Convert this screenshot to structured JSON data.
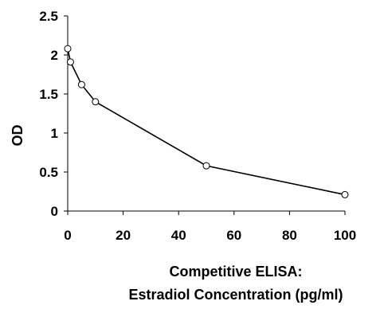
{
  "chart_data": {
    "type": "line",
    "title": "",
    "xlabel_lines": [
      "Competitive ELISA:",
      "Estradiol Concentration (pg/ml)"
    ],
    "ylabel": "OD",
    "xlim": [
      0,
      100
    ],
    "ylim": [
      0,
      2.5
    ],
    "x_ticks": [
      "0",
      "20",
      "40",
      "60",
      "80",
      "100"
    ],
    "y_ticks": [
      "0",
      "0.5",
      "1",
      "1.5",
      "2",
      "2.5"
    ],
    "grid": false,
    "legend": "none",
    "series": [
      {
        "x": [
          0,
          1,
          5,
          10,
          50,
          100
        ],
        "y": [
          2.08,
          1.91,
          1.62,
          1.4,
          0.58,
          0.21
        ]
      }
    ],
    "colors": {
      "line": "#000000",
      "marker_fill": "#ffffff",
      "marker_stroke": "#000000",
      "axis": "#000000"
    }
  }
}
